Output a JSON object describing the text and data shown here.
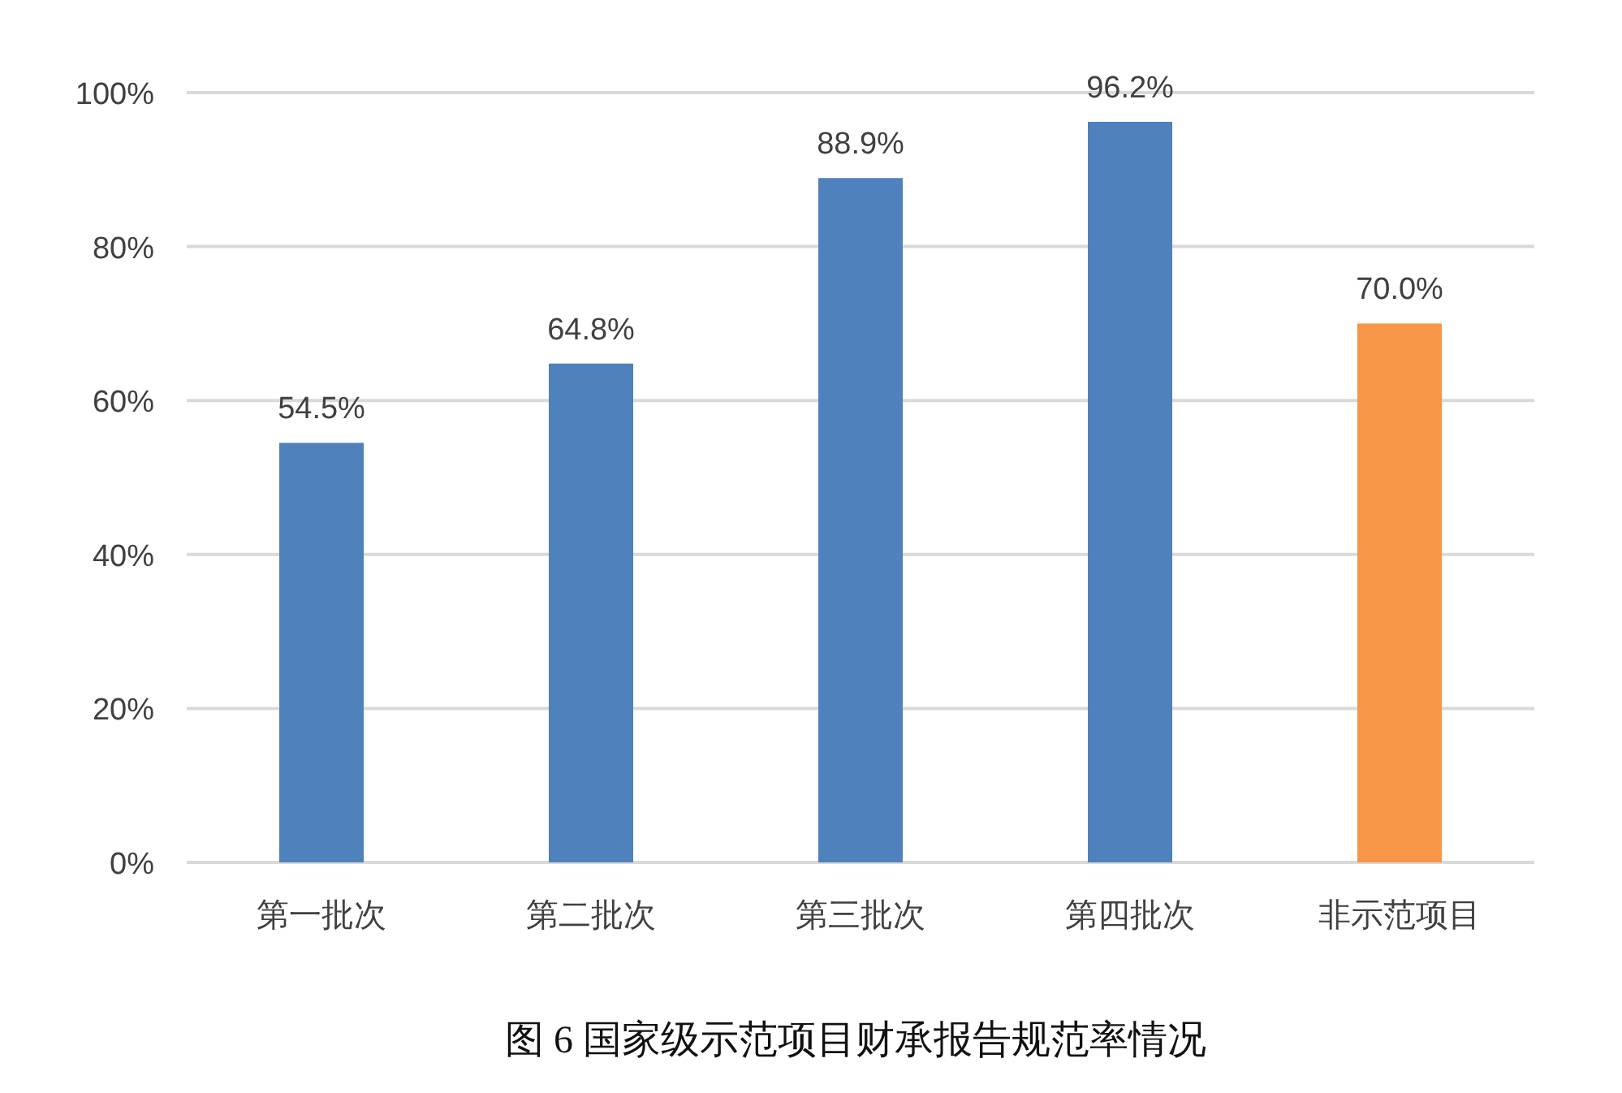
{
  "chart_data": {
    "type": "bar",
    "title": "图 6  国家级示范项目财承报告规范率情况",
    "categories": [
      "第一批次",
      "第二批次",
      "第三批次",
      "第四批次",
      "非示范项目"
    ],
    "values": [
      54.5,
      64.8,
      88.9,
      96.2,
      70.0
    ],
    "value_labels": [
      "54.5%",
      "64.8%",
      "88.9%",
      "96.2%",
      "70.0%"
    ],
    "colors": [
      "#4f81bd",
      "#4f81bd",
      "#4f81bd",
      "#4f81bd",
      "#f79646"
    ],
    "ylim": [
      0,
      100
    ],
    "yticks": [
      {
        "value": 0,
        "label": "0%"
      },
      {
        "value": 20,
        "label": "20%"
      },
      {
        "value": 40,
        "label": "40%"
      },
      {
        "value": 60,
        "label": "60%"
      },
      {
        "value": 80,
        "label": "80%"
      },
      {
        "value": 100,
        "label": "100%"
      }
    ],
    "grid": "y"
  }
}
